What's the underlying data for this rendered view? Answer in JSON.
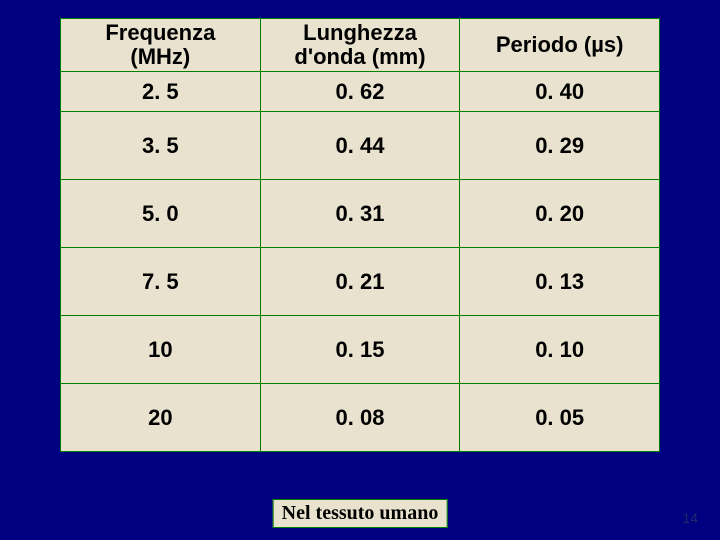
{
  "table": {
    "background_color": "#000080",
    "cell_background": "#e8e2ce",
    "border_color": "#008000",
    "text_color": "#000000",
    "font_family": "Comic Sans MS",
    "header_fontsize": 22,
    "cell_fontsize": 22,
    "font_weight": "bold",
    "columns": [
      {
        "label_line1": "Frequenza",
        "label_line2": "(MHz)"
      },
      {
        "label_line1": "Lunghezza",
        "label_line2": "d'onda (mm)"
      },
      {
        "label_line1": "Periodo (µs)",
        "label_line2": ""
      }
    ],
    "rows": [
      [
        "2. 5",
        "0. 62",
        "0. 40"
      ],
      [
        "3. 5",
        "0. 44",
        "0. 29"
      ],
      [
        "5. 0",
        "0. 31",
        "0. 20"
      ],
      [
        "7. 5",
        "0. 21",
        "0. 13"
      ],
      [
        "10",
        "0. 15",
        "0. 10"
      ],
      [
        "20",
        "0. 08",
        "0. 05"
      ]
    ]
  },
  "caption": "Nel tessuto umano",
  "page_number": "14"
}
